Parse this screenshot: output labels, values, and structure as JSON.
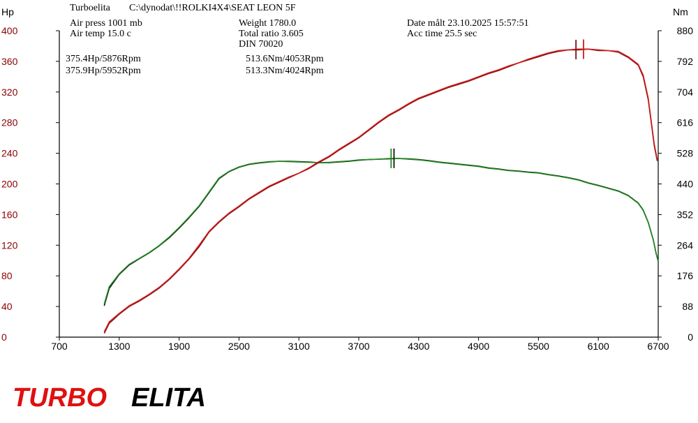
{
  "header": {
    "line1": {
      "program": "Turboelita",
      "path": "C:\\dynodat\\!!ROLKI4X4\\SEAT LEON 5F"
    },
    "air_press": "Air press 1001 mb",
    "air_temp": "Air temp 15.0 c",
    "weight": "Weight 1780.0",
    "total_ratio": "Total ratio 3.605",
    "din": "DIN 70020",
    "date": "Date målt 23.10.2025 15:57:51",
    "acc_time": "Acc time 25.5 sec"
  },
  "annotations": {
    "hp_run1": "375.4Hp/5876Rpm",
    "hp_run2": "375.9Hp/5952Rpm",
    "nm_run1": "513.6Nm/4053Rpm",
    "nm_run2": "513.3Nm/4024Rpm"
  },
  "logo": {
    "part1": "TURBO",
    "part2": "ELITA"
  },
  "colors": {
    "hp_axis": "#8b0000",
    "run1_power": "#7a1010",
    "run2_power": "#d11a1a",
    "run1_torque": "#111111",
    "run2_torque": "#1f8a1f",
    "logo_red": "#e01010",
    "logo_black": "#000000"
  },
  "chart_data": {
    "type": "line",
    "xlabel": "",
    "ylabel_left": "Hp",
    "ylabel_right": "Nm",
    "xlim": [
      700,
      6700
    ],
    "ylim_left": [
      0,
      400
    ],
    "ylim_right": [
      0,
      880
    ],
    "x_ticks": [
      "700",
      "1300",
      "1900",
      "2500",
      "3100",
      "3700",
      "4300",
      "4900",
      "5500",
      "6100",
      "6700"
    ],
    "y_left_ticks": [
      "0",
      "40",
      "80",
      "120",
      "160",
      "200",
      "240",
      "280",
      "320",
      "360",
      "400"
    ],
    "y_right_ticks": [
      "0",
      "88",
      "176",
      "264",
      "352",
      "440",
      "528",
      "616",
      "704",
      "792",
      "880"
    ],
    "grid": false,
    "series": [
      {
        "axis": "left",
        "points": [
          [
            1150,
            5
          ],
          [
            1200,
            18
          ],
          [
            1300,
            30
          ],
          [
            1400,
            40
          ],
          [
            1500,
            47
          ],
          [
            1600,
            55
          ],
          [
            1700,
            64
          ],
          [
            1800,
            75
          ],
          [
            1900,
            88
          ],
          [
            2000,
            102
          ],
          [
            2100,
            118
          ],
          [
            2200,
            137
          ],
          [
            2300,
            150
          ],
          [
            2400,
            161
          ],
          [
            2500,
            170
          ],
          [
            2600,
            180
          ],
          [
            2700,
            188
          ],
          [
            2800,
            196
          ],
          [
            2900,
            202
          ],
          [
            3000,
            208
          ],
          [
            3100,
            214
          ],
          [
            3200,
            220
          ],
          [
            3300,
            228
          ],
          [
            3400,
            235
          ],
          [
            3500,
            244
          ],
          [
            3600,
            252
          ],
          [
            3700,
            260
          ],
          [
            3800,
            270
          ],
          [
            3900,
            280
          ],
          [
            4000,
            289
          ],
          [
            4100,
            296
          ],
          [
            4200,
            304
          ],
          [
            4300,
            311
          ],
          [
            4400,
            316
          ],
          [
            4500,
            321
          ],
          [
            4600,
            326
          ],
          [
            4700,
            330
          ],
          [
            4800,
            334
          ],
          [
            4900,
            339
          ],
          [
            5000,
            344
          ],
          [
            5100,
            348
          ],
          [
            5200,
            353
          ],
          [
            5300,
            358
          ],
          [
            5400,
            362
          ],
          [
            5500,
            366
          ],
          [
            5600,
            370
          ],
          [
            5700,
            373
          ],
          [
            5800,
            375
          ],
          [
            5900,
            375
          ],
          [
            6000,
            376
          ],
          [
            6100,
            374
          ],
          [
            6200,
            374
          ],
          [
            6300,
            372
          ],
          [
            6400,
            365
          ],
          [
            6500,
            355
          ],
          [
            6550,
            340
          ],
          [
            6600,
            310
          ],
          [
            6630,
            280
          ],
          [
            6660,
            250
          ],
          [
            6690,
            230
          ]
        ]
      },
      {
        "axis": "left",
        "points": [
          [
            1150,
            7
          ],
          [
            1200,
            20
          ],
          [
            1300,
            31
          ],
          [
            1400,
            41
          ],
          [
            1500,
            48
          ],
          [
            1600,
            56
          ],
          [
            1700,
            65
          ],
          [
            1800,
            76
          ],
          [
            1900,
            89
          ],
          [
            2000,
            103
          ],
          [
            2100,
            120
          ],
          [
            2200,
            138
          ],
          [
            2300,
            151
          ],
          [
            2400,
            162
          ],
          [
            2500,
            171
          ],
          [
            2600,
            181
          ],
          [
            2700,
            189
          ],
          [
            2800,
            197
          ],
          [
            2900,
            203
          ],
          [
            3000,
            209
          ],
          [
            3100,
            214
          ],
          [
            3200,
            221
          ],
          [
            3300,
            229
          ],
          [
            3400,
            236
          ],
          [
            3500,
            245
          ],
          [
            3600,
            253
          ],
          [
            3700,
            261
          ],
          [
            3800,
            271
          ],
          [
            3900,
            281
          ],
          [
            4000,
            290
          ],
          [
            4100,
            297
          ],
          [
            4200,
            305
          ],
          [
            4300,
            312
          ],
          [
            4400,
            317
          ],
          [
            4500,
            322
          ],
          [
            4600,
            327
          ],
          [
            4700,
            331
          ],
          [
            4800,
            335
          ],
          [
            4900,
            340
          ],
          [
            5000,
            345
          ],
          [
            5100,
            349
          ],
          [
            5200,
            354
          ],
          [
            5300,
            358
          ],
          [
            5400,
            363
          ],
          [
            5500,
            367
          ],
          [
            5600,
            371
          ],
          [
            5700,
            374
          ],
          [
            5800,
            375
          ],
          [
            5900,
            376
          ],
          [
            6000,
            376
          ],
          [
            6100,
            375
          ],
          [
            6200,
            374
          ],
          [
            6300,
            373
          ],
          [
            6400,
            366
          ],
          [
            6500,
            356
          ],
          [
            6550,
            342
          ],
          [
            6600,
            312
          ],
          [
            6630,
            282
          ],
          [
            6660,
            252
          ],
          [
            6690,
            232
          ]
        ]
      },
      {
        "axis": "right",
        "points": [
          [
            1150,
            90
          ],
          [
            1200,
            140
          ],
          [
            1300,
            180
          ],
          [
            1400,
            207
          ],
          [
            1500,
            225
          ],
          [
            1600,
            242
          ],
          [
            1700,
            262
          ],
          [
            1800,
            285
          ],
          [
            1900,
            313
          ],
          [
            2000,
            343
          ],
          [
            2100,
            375
          ],
          [
            2200,
            415
          ],
          [
            2300,
            455
          ],
          [
            2400,
            475
          ],
          [
            2500,
            488
          ],
          [
            2600,
            496
          ],
          [
            2700,
            500
          ],
          [
            2800,
            503
          ],
          [
            2900,
            505
          ],
          [
            3000,
            505
          ],
          [
            3100,
            504
          ],
          [
            3200,
            503
          ],
          [
            3300,
            501
          ],
          [
            3400,
            501
          ],
          [
            3500,
            503
          ],
          [
            3600,
            505
          ],
          [
            3700,
            508
          ],
          [
            3800,
            510
          ],
          [
            3900,
            511
          ],
          [
            4000,
            512
          ],
          [
            4100,
            513
          ],
          [
            4200,
            512
          ],
          [
            4300,
            510
          ],
          [
            4400,
            507
          ],
          [
            4500,
            503
          ],
          [
            4600,
            500
          ],
          [
            4700,
            497
          ],
          [
            4800,
            494
          ],
          [
            4900,
            491
          ],
          [
            5000,
            486
          ],
          [
            5100,
            483
          ],
          [
            5200,
            479
          ],
          [
            5300,
            477
          ],
          [
            5400,
            474
          ],
          [
            5500,
            472
          ],
          [
            5600,
            467
          ],
          [
            5700,
            463
          ],
          [
            5800,
            458
          ],
          [
            5900,
            452
          ],
          [
            6000,
            443
          ],
          [
            6100,
            436
          ],
          [
            6200,
            428
          ],
          [
            6300,
            420
          ],
          [
            6400,
            407
          ],
          [
            6500,
            385
          ],
          [
            6550,
            365
          ],
          [
            6600,
            330
          ],
          [
            6650,
            280
          ],
          [
            6680,
            240
          ],
          [
            6700,
            218
          ]
        ]
      },
      {
        "axis": "right",
        "points": [
          [
            1150,
            95
          ],
          [
            1200,
            145
          ],
          [
            1300,
            182
          ],
          [
            1400,
            209
          ],
          [
            1500,
            226
          ],
          [
            1600,
            243
          ],
          [
            1700,
            263
          ],
          [
            1800,
            287
          ],
          [
            1900,
            315
          ],
          [
            2000,
            345
          ],
          [
            2100,
            377
          ],
          [
            2200,
            417
          ],
          [
            2300,
            457
          ],
          [
            2400,
            476
          ],
          [
            2500,
            489
          ],
          [
            2600,
            497
          ],
          [
            2700,
            501
          ],
          [
            2800,
            504
          ],
          [
            2900,
            505
          ],
          [
            3000,
            504
          ],
          [
            3100,
            503
          ],
          [
            3200,
            502
          ],
          [
            3300,
            501
          ],
          [
            3400,
            502
          ],
          [
            3500,
            504
          ],
          [
            3600,
            506
          ],
          [
            3700,
            509
          ],
          [
            3800,
            510
          ],
          [
            3900,
            511
          ],
          [
            4000,
            513
          ],
          [
            4100,
            513
          ],
          [
            4200,
            511
          ],
          [
            4300,
            509
          ],
          [
            4400,
            506
          ],
          [
            4500,
            502
          ],
          [
            4600,
            499
          ],
          [
            4700,
            496
          ],
          [
            4800,
            493
          ],
          [
            4900,
            490
          ],
          [
            5000,
            485
          ],
          [
            5100,
            482
          ],
          [
            5200,
            478
          ],
          [
            5300,
            476
          ],
          [
            5400,
            473
          ],
          [
            5500,
            471
          ],
          [
            5600,
            466
          ],
          [
            5700,
            462
          ],
          [
            5800,
            457
          ],
          [
            5900,
            451
          ],
          [
            6000,
            442
          ],
          [
            6100,
            435
          ],
          [
            6200,
            427
          ],
          [
            6300,
            419
          ],
          [
            6400,
            406
          ],
          [
            6500,
            384
          ],
          [
            6550,
            364
          ],
          [
            6600,
            329
          ],
          [
            6650,
            279
          ],
          [
            6680,
            239
          ],
          [
            6700,
            217
          ]
        ]
      }
    ],
    "peak_markers": [
      {
        "axis": "left",
        "x": 5876,
        "value": 375.4
      },
      {
        "axis": "left",
        "x": 5952,
        "value": 375.9
      },
      {
        "axis": "right",
        "x": 4053,
        "value": 513.6
      },
      {
        "axis": "right",
        "x": 4024,
        "value": 513.3
      }
    ]
  }
}
